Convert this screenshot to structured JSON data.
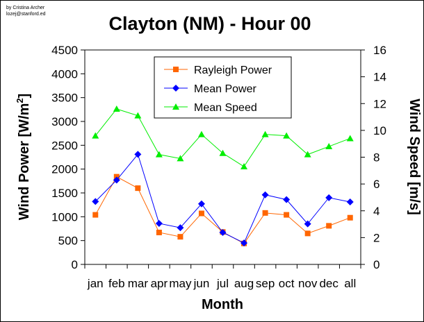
{
  "credit": {
    "line1": "by Cristina Archer",
    "line2": "lozej@stanford.ed"
  },
  "chart_data": {
    "type": "line",
    "title": "Clayton (NM) - Hour 00",
    "xlabel": "Month",
    "ylabel_left": "Wind Power [W/m",
    "ylabel_left_sup": "2",
    "ylabel_left_end": "]",
    "ylabel_right": "Wind Speed [m/s]",
    "categories": [
      "jan",
      "feb",
      "mar",
      "apr",
      "may",
      "jun",
      "jul",
      "aug",
      "sep",
      "oct",
      "nov",
      "dec",
      "all"
    ],
    "ylim_left": [
      0,
      4500
    ],
    "yticks_left": [
      0,
      500,
      1000,
      1500,
      2000,
      2500,
      3000,
      3500,
      4000,
      4500
    ],
    "ylim_right": [
      0,
      16
    ],
    "yticks_right": [
      0,
      2,
      4,
      6,
      8,
      10,
      12,
      14,
      16
    ],
    "grid": false,
    "legend_placement": "top-center",
    "series": [
      {
        "name": "Rayleigh Power",
        "axis": "left",
        "color": "#ff6600",
        "marker": "square",
        "values": [
          1040,
          1840,
          1600,
          670,
          580,
          1070,
          680,
          440,
          1080,
          1040,
          650,
          810,
          980
        ]
      },
      {
        "name": "Mean Power",
        "axis": "left",
        "color": "#0000ff",
        "marker": "diamond",
        "values": [
          1320,
          1770,
          2310,
          860,
          770,
          1270,
          670,
          450,
          1460,
          1360,
          850,
          1400,
          1310
        ]
      },
      {
        "name": "Mean Speed",
        "axis": "right",
        "color": "#00ee00",
        "marker": "triangle",
        "values": [
          9.6,
          11.6,
          11.1,
          8.2,
          7.9,
          9.7,
          8.3,
          7.3,
          9.7,
          9.6,
          8.2,
          8.8,
          9.4
        ]
      }
    ]
  }
}
